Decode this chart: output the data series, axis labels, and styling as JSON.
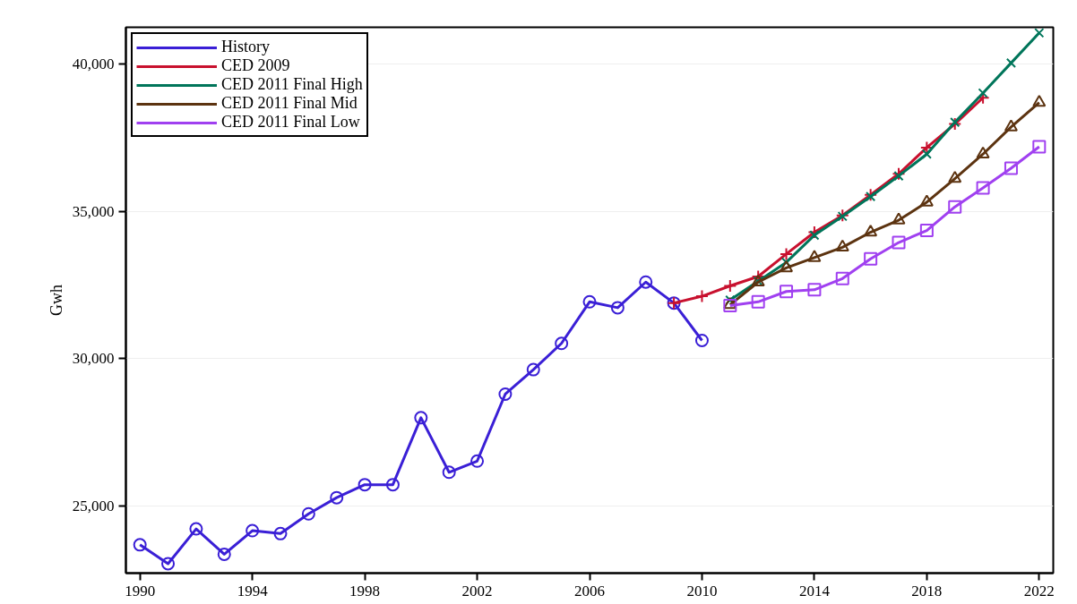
{
  "chart_data": {
    "type": "line",
    "ylabel": "Gwh",
    "xlim": [
      1989.5,
      2022.5
    ],
    "ylim": [
      22730,
      41240
    ],
    "xticks": [
      1990,
      1994,
      1998,
      2002,
      2006,
      2010,
      2014,
      2018,
      2022
    ],
    "yticks": [
      {
        "value": 25000,
        "label": "25,000"
      },
      {
        "value": 30000,
        "label": "30,000"
      },
      {
        "value": 35000,
        "label": "35,000"
      },
      {
        "value": 40000,
        "label": "40,000"
      }
    ],
    "grid": "y",
    "legend": "top left",
    "series": [
      {
        "name": "History",
        "color": "#3a1fd6",
        "marker": "circle",
        "x": [
          1990,
          1991,
          1992,
          1993,
          1994,
          1995,
          1996,
          1997,
          1998,
          1999,
          2000,
          2001,
          2002,
          2003,
          2004,
          2005,
          2006,
          2007,
          2008,
          2009,
          2010
        ],
        "values": [
          23690,
          23050,
          24230,
          23370,
          24170,
          24070,
          24740,
          25290,
          25730,
          25730,
          28000,
          26150,
          26530,
          28800,
          29630,
          30520,
          31930,
          31730,
          32600,
          31890,
          30620
        ]
      },
      {
        "name": "CED 2009",
        "color": "#c8102e",
        "marker": "cross",
        "x": [
          2009,
          2010,
          2011,
          2012,
          2013,
          2014,
          2015,
          2016,
          2017,
          2018,
          2019,
          2020
        ],
        "values": [
          31890,
          32120,
          32470,
          32790,
          33550,
          34290,
          34860,
          35560,
          36270,
          37160,
          37960,
          38850
        ]
      },
      {
        "name": "CED 2011 Final High",
        "color": "#00755a",
        "marker": "x",
        "x": [
          2011,
          2012,
          2013,
          2014,
          2015,
          2016,
          2017,
          2018,
          2019,
          2020,
          2021,
          2022
        ],
        "values": [
          31990,
          32630,
          33270,
          34190,
          34830,
          35500,
          36200,
          36940,
          38020,
          39010,
          40030,
          41050
        ]
      },
      {
        "name": "CED 2011 Final Mid",
        "color": "#5c3310",
        "marker": "triangle",
        "x": [
          2011,
          2012,
          2013,
          2014,
          2015,
          2016,
          2017,
          2018,
          2019,
          2020,
          2021,
          2022
        ],
        "values": [
          31830,
          32600,
          33080,
          33430,
          33780,
          34290,
          34700,
          35310,
          36110,
          36940,
          37860,
          38690
        ]
      },
      {
        "name": "CED 2011 Final Low",
        "color": "#a040f0",
        "marker": "square",
        "x": [
          2011,
          2012,
          2013,
          2014,
          2015,
          2016,
          2017,
          2018,
          2019,
          2020,
          2021,
          2022
        ],
        "values": [
          31800,
          31930,
          32280,
          32340,
          32720,
          33390,
          33940,
          34350,
          35150,
          35790,
          36460,
          37190
        ]
      }
    ]
  }
}
